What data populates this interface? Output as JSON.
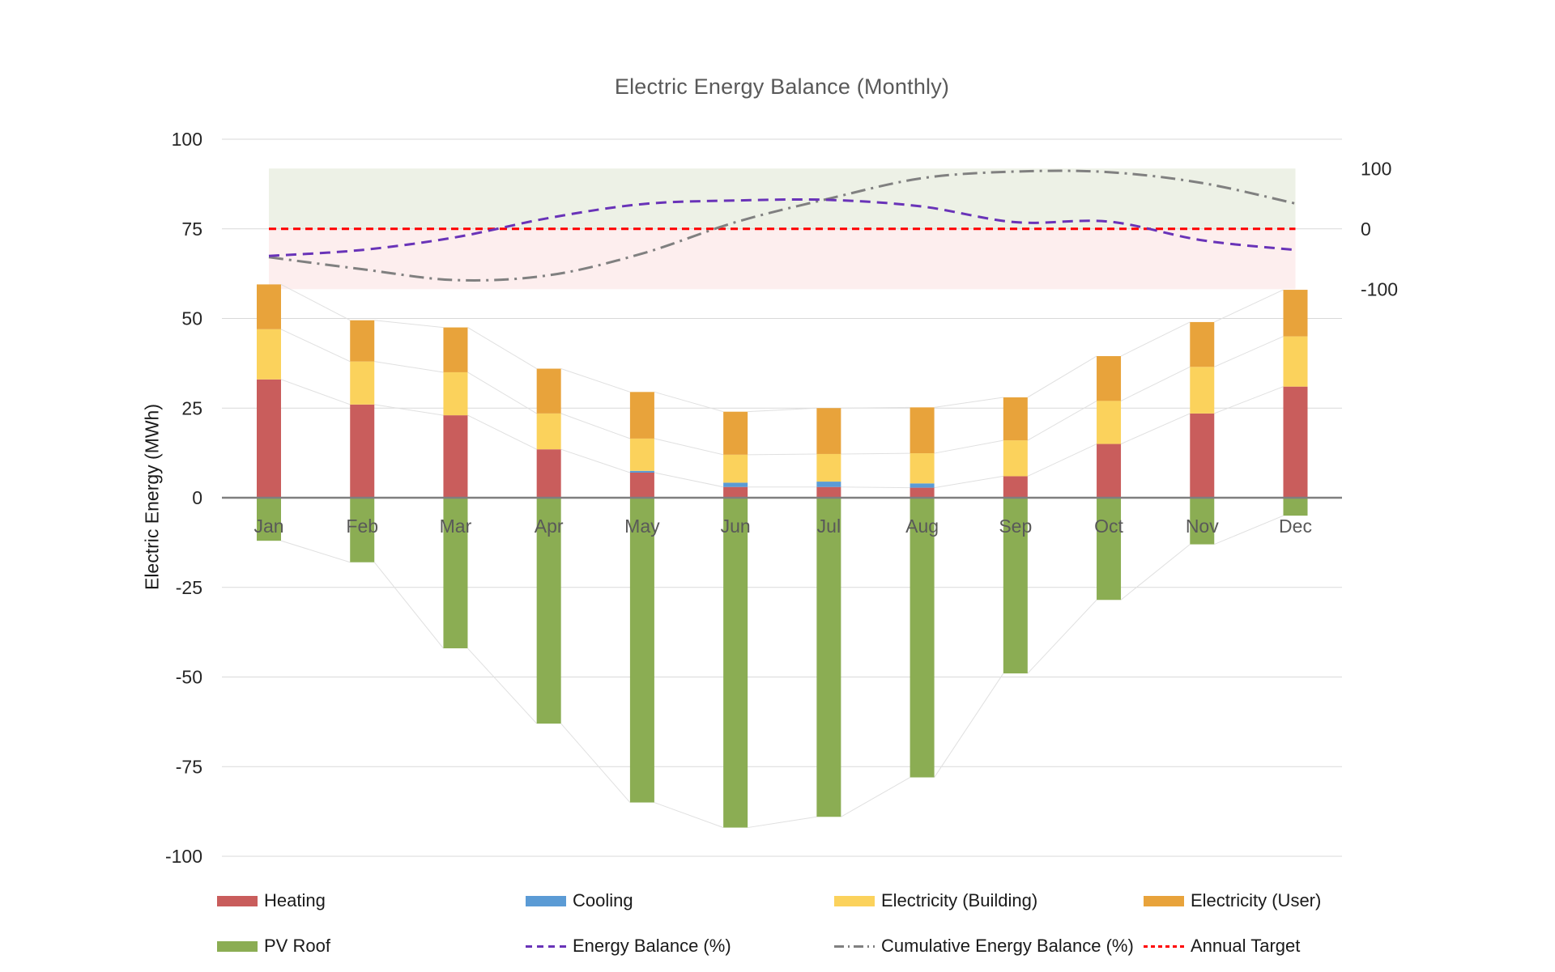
{
  "title": "Electric Energy Balance (Monthly)",
  "y_axis_label": "Electric  Energy (MWh)",
  "chart_data": {
    "type": "bar",
    "subtype": "stacked-bar-with-lines",
    "title": "Electric Energy Balance (Monthly)",
    "categories": [
      "Jan",
      "Feb",
      "Mar",
      "Apr",
      "May",
      "Jun",
      "Jul",
      "Aug",
      "Sep",
      "Oct",
      "Nov",
      "Dec"
    ],
    "left_axis": {
      "label": "Electric  Energy (MWh)",
      "min": -100,
      "max": 100,
      "step": 25,
      "ticks": [
        100,
        75,
        50,
        25,
        0,
        -25,
        -50,
        -75,
        -100
      ]
    },
    "right_axis": {
      "min": -100,
      "max": 100,
      "ticks": [
        100,
        0,
        -100
      ]
    },
    "grid": true,
    "background_band": {
      "axis": "right",
      "range": [
        -100,
        100
      ],
      "positive_color": "#EDF1E6",
      "negative_color": "#FDEEEE"
    },
    "series": [
      {
        "name": "Heating",
        "type": "bar",
        "axis": "left",
        "color": "#C95D5C",
        "values": [
          33,
          26,
          23,
          13.5,
          7,
          3,
          3,
          2.8,
          6,
          15,
          23.5,
          31
        ]
      },
      {
        "name": "Cooling",
        "type": "bar",
        "axis": "left",
        "color": "#5B9BD5",
        "values": [
          0,
          0,
          0,
          0,
          0.5,
          1.2,
          1.5,
          1.2,
          0,
          0,
          0,
          0
        ]
      },
      {
        "name": "Electricity (Building)",
        "type": "bar",
        "axis": "left",
        "color": "#FBD25C",
        "values": [
          14,
          12,
          12,
          10,
          9,
          7.8,
          7.7,
          8.4,
          10,
          12,
          13,
          14
        ]
      },
      {
        "name": "Electricity (User)",
        "type": "bar",
        "axis": "left",
        "color": "#E8A33B",
        "values": [
          12.5,
          11.5,
          12.5,
          12.5,
          13,
          12,
          12.8,
          12.8,
          12,
          12.5,
          12.5,
          13
        ]
      },
      {
        "name": "PV Roof",
        "type": "bar",
        "axis": "left",
        "color": "#8BAD53",
        "values": [
          -12,
          -18,
          -42,
          -63,
          -85,
          -92,
          -89,
          -78,
          -49,
          -28.5,
          -13,
          -5
        ]
      },
      {
        "name": "Energy Balance (%)",
        "type": "line",
        "style": "dashed",
        "axis": "right",
        "color": "#6933B8",
        "values": [
          -45,
          -35,
          -14,
          18,
          41,
          47,
          48,
          37,
          11,
          12,
          -19,
          -35
        ]
      },
      {
        "name": "Cumulative Energy Balance  (%)",
        "type": "line",
        "style": "dashdot",
        "axis": "right",
        "color": "#808080",
        "values": [
          -47,
          -67,
          -85,
          -77,
          -41,
          11,
          50,
          84,
          95,
          94,
          76,
          42
        ]
      },
      {
        "name": "Annual Target",
        "type": "line",
        "style": "dense-dashed",
        "axis": "right",
        "color": "#FF0000",
        "values": [
          0,
          0,
          0,
          0,
          0,
          0,
          0,
          0,
          0,
          0,
          0,
          0
        ]
      }
    ],
    "colors": {
      "gridline": "#D9D9D9",
      "zero_line": "#7F7F7F",
      "connector_line": "#E0E0E0",
      "tick_label": "#262626",
      "month_label": "#595959",
      "title": "#595959"
    },
    "legend_position": "bottom"
  },
  "legend": {
    "items": [
      {
        "label": "Heating",
        "swatch": "bar",
        "color": "#C95D5C"
      },
      {
        "label": "Cooling",
        "swatch": "bar",
        "color": "#5B9BD5"
      },
      {
        "label": "Electricity (Building)",
        "swatch": "bar",
        "color": "#FBD25C"
      },
      {
        "label": "Electricity (User)",
        "swatch": "bar",
        "color": "#E8A33B"
      },
      {
        "label": "PV Roof",
        "swatch": "bar",
        "color": "#8BAD53"
      },
      {
        "label": "Energy Balance (%)",
        "swatch": "dashed-line",
        "color": "#6933B8"
      },
      {
        "label": "Cumulative Energy Balance  (%)",
        "swatch": "dashdot-line",
        "color": "#808080"
      },
      {
        "label": "Annual Target",
        "swatch": "dense-dashed-line",
        "color": "#FF0000"
      }
    ]
  }
}
